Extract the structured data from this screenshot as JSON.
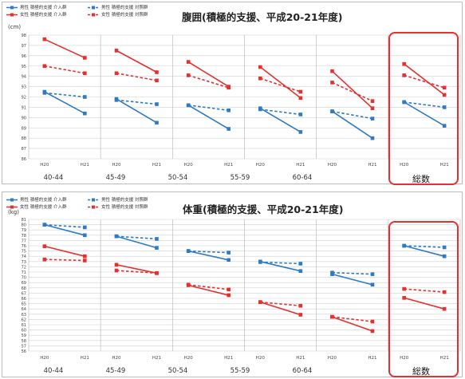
{
  "colors": {
    "male": "#2e7bc4",
    "female": "#e53030",
    "highlight": "#e53030"
  },
  "chart_data": [
    {
      "type": "line",
      "title": "腹囲(積極的支援、平成20-21年度)",
      "unit": "(cm)",
      "legend": [
        {
          "key": "male_int",
          "label": "男性 積極的支援 介入群",
          "color": "#2e7bc4",
          "dashed": false
        },
        {
          "key": "male_ctl",
          "label": "男性 積極的支援 対照群",
          "color": "#2e7bc4",
          "dashed": true
        },
        {
          "key": "female_int",
          "label": "女性 積極的支援 介入群",
          "color": "#e53030",
          "dashed": false
        },
        {
          "key": "female_ctl",
          "label": "女性 積極的支援 対照群",
          "color": "#e53030",
          "dashed": true
        }
      ],
      "x_ticks": [
        "H20",
        "H21"
      ],
      "groups": [
        "40-44",
        "45-49",
        "50-54",
        "55-59",
        "60-64",
        "総数"
      ],
      "highlight_group": "総数",
      "ylim": [
        86,
        98
      ],
      "yticks": [
        86,
        87,
        88,
        89,
        90,
        91,
        92,
        93,
        94,
        95,
        96,
        97,
        98
      ],
      "series": [
        {
          "key": "female_int",
          "values": [
            [
              97.6,
              95.8
            ],
            [
              96.5,
              94.4
            ],
            [
              95.4,
              93.0
            ],
            [
              94.9,
              91.9
            ],
            [
              94.5,
              90.9
            ],
            [
              95.2,
              92.2
            ]
          ]
        },
        {
          "key": "female_ctl",
          "values": [
            [
              95.0,
              94.3
            ],
            [
              94.3,
              93.6
            ],
            [
              94.1,
              92.9
            ],
            [
              93.8,
              92.5
            ],
            [
              93.4,
              91.6
            ],
            [
              94.1,
              92.9
            ]
          ]
        },
        {
          "key": "male_ctl",
          "values": [
            [
              92.4,
              92.0
            ],
            [
              91.7,
              91.3
            ],
            [
              91.2,
              90.7
            ],
            [
              90.8,
              90.3
            ],
            [
              90.6,
              89.9
            ],
            [
              91.5,
              91.0
            ]
          ]
        },
        {
          "key": "male_int",
          "values": [
            [
              92.5,
              90.4
            ],
            [
              91.8,
              89.5
            ],
            [
              91.2,
              88.9
            ],
            [
              90.9,
              88.6
            ],
            [
              90.6,
              88.0
            ],
            [
              91.5,
              89.2
            ]
          ]
        }
      ]
    },
    {
      "type": "line",
      "title": "体重(積極的支援、平成20-21年度)",
      "unit": "(kg)",
      "legend": [
        {
          "key": "male_int",
          "label": "男性 積極的支援 介入群",
          "color": "#2e7bc4",
          "dashed": false
        },
        {
          "key": "male_ctl",
          "label": "男性 積極的支援 対照群",
          "color": "#2e7bc4",
          "dashed": true
        },
        {
          "key": "female_int",
          "label": "女性 積極的支援 介入群",
          "color": "#e53030",
          "dashed": false
        },
        {
          "key": "female_ctl",
          "label": "女性 積極的支援 対照群",
          "color": "#e53030",
          "dashed": true
        }
      ],
      "x_ticks": [
        "H20",
        "H21"
      ],
      "groups": [
        "40-44",
        "45-49",
        "50-54",
        "55-59",
        "60-64",
        "総数"
      ],
      "highlight_group": "総数",
      "ylim": [
        56,
        81
      ],
      "yticks": [
        56,
        57,
        58,
        59,
        60,
        61,
        62,
        63,
        64,
        65,
        66,
        67,
        68,
        69,
        70,
        71,
        72,
        73,
        74,
        75,
        76,
        77,
        78,
        79,
        80,
        81
      ],
      "series": [
        {
          "key": "male_int",
          "values": [
            [
              80.0,
              78.0
            ],
            [
              77.8,
              75.6
            ],
            [
              75.0,
              73.3
            ],
            [
              73.0,
              71.2
            ],
            [
              70.6,
              68.6
            ],
            [
              76.0,
              74.0
            ]
          ]
        },
        {
          "key": "male_ctl",
          "values": [
            [
              80.0,
              79.5
            ],
            [
              77.8,
              77.3
            ],
            [
              75.0,
              74.7
            ],
            [
              72.9,
              72.6
            ],
            [
              70.9,
              70.6
            ],
            [
              76.0,
              75.7
            ]
          ]
        },
        {
          "key": "female_ctl",
          "values": [
            [
              73.4,
              73.2
            ],
            [
              71.3,
              70.8
            ],
            [
              68.6,
              67.7
            ],
            [
              65.3,
              64.6
            ],
            [
              62.5,
              61.6
            ],
            [
              67.8,
              67.2
            ]
          ]
        },
        {
          "key": "female_int",
          "values": [
            [
              75.9,
              74.0
            ],
            [
              72.4,
              70.8
            ],
            [
              68.5,
              66.6
            ],
            [
              65.3,
              62.9
            ],
            [
              62.5,
              59.8
            ],
            [
              66.1,
              64.0
            ]
          ]
        }
      ]
    }
  ]
}
